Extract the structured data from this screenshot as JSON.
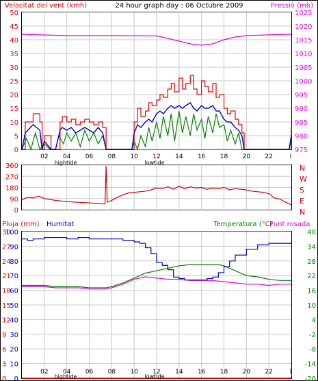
{
  "header": {
    "title": "24 hour graph day : 06 Octubre 2009"
  },
  "panel1": {
    "left_title": "Velocitat del vent (kmh)",
    "right_title": "Pressió (mb)"
  },
  "panel2": {
    "dir_letters": [
      "N",
      "W",
      "S",
      "E",
      "N"
    ]
  },
  "panel3": {
    "left_title": "Pluja (mm)",
    "left_title_2": "Humitat",
    "right_title": "Temperatura (°C)",
    "right_title_2": "Punt rosada"
  },
  "x_axis": {
    "hour_labels": [
      "02",
      "04",
      "06",
      "08",
      "10",
      "12",
      "14",
      "16",
      "18",
      "20",
      "22"
    ],
    "last_label": "l",
    "tide_labels": [
      "hightide",
      "lowtide"
    ]
  },
  "colors": {
    "frame": "#000000",
    "grid": "#c8c8c8",
    "wind_axis": "#e00000",
    "pressure_axis": "#e000e0",
    "gust": "#e00000",
    "avg_wind": "#0000c0",
    "wind_min": "#008000",
    "pressure": "#e000e0",
    "direction": "#d00000",
    "humidity": "#0000c0",
    "temperature": "#008000",
    "dewpoint": "#e000e0",
    "rain": "#e00000"
  },
  "chart_data": [
    {
      "type": "line",
      "title": "24 hour graph day : 06 Octubre 2009",
      "ylabel": "Velocitat del vent (kmh)",
      "y2label": "Pressió (mb)",
      "xlim": [
        0,
        24
      ],
      "ylim": [
        0,
        50
      ],
      "y_ticks": [
        0,
        5,
        10,
        15,
        20,
        25,
        30,
        35,
        40,
        45,
        50
      ],
      "y2lim": [
        975,
        1025
      ],
      "y2_ticks": [
        975,
        980,
        985,
        990,
        995,
        1000,
        1005,
        1010,
        1015,
        1020,
        1025
      ],
      "grid": true,
      "series": [
        {
          "name": "",
          "axis": "left",
          "style": "step",
          "x": [
            0,
            0.3,
            1,
            1.6,
            1.8,
            2,
            2.6,
            3,
            3.4,
            3.6,
            4,
            4.4,
            4.8,
            5.2,
            5.6,
            6,
            6.4,
            6.8,
            7.2,
            7.5,
            9.8,
            10,
            10.3,
            10.6,
            11,
            11.3,
            11.6,
            12,
            12.3,
            12.6,
            13,
            13.3,
            13.6,
            14,
            14.3,
            14.6,
            15,
            15.3,
            15.6,
            16,
            16.3,
            16.6,
            17,
            17.3,
            17.6,
            18,
            18.3,
            18.6,
            19,
            19.3,
            19.6,
            19.8,
            23.8,
            24
          ],
          "values": [
            0,
            10,
            13,
            10,
            0,
            5,
            0,
            0,
            10,
            12,
            10,
            11,
            9,
            10,
            11,
            10,
            9,
            10,
            8,
            0,
            0,
            10,
            15,
            12,
            14,
            17,
            16,
            18,
            20,
            19,
            22,
            24,
            21,
            26,
            22,
            24,
            27,
            22,
            20,
            25,
            23,
            21,
            24,
            19,
            20,
            15,
            13,
            14,
            11,
            9,
            6,
            0,
            0,
            8
          ]
        },
        {
          "name": "",
          "axis": "left",
          "x": [
            0,
            0.3,
            1,
            1.6,
            1.8,
            2,
            2.6,
            3,
            3.4,
            3.6,
            4,
            4.4,
            4.8,
            5.2,
            5.6,
            6,
            6.4,
            6.8,
            7.2,
            7.5,
            9.8,
            10,
            10.3,
            10.6,
            11,
            11.3,
            11.6,
            12,
            12.3,
            12.6,
            13,
            13.3,
            13.6,
            14,
            14.3,
            14.6,
            15,
            15.3,
            15.6,
            16,
            16.3,
            16.6,
            17,
            17.3,
            17.6,
            18,
            18.3,
            18.6,
            19,
            19.3,
            19.6,
            19.8,
            23.8,
            24
          ],
          "values": [
            0,
            6,
            9,
            7,
            0,
            3,
            0,
            0,
            7,
            8,
            7,
            8,
            6,
            7,
            8,
            7,
            6,
            8,
            6,
            0,
            0,
            6,
            9,
            8,
            10,
            11,
            10,
            13,
            14,
            13,
            15,
            16,
            15,
            16,
            15,
            16,
            17,
            15,
            14,
            16,
            15,
            15,
            16,
            14,
            14,
            11,
            10,
            10,
            8,
            7,
            5,
            0,
            0,
            5
          ]
        },
        {
          "name": "",
          "axis": "left",
          "style": "jagged",
          "x": [
            0,
            0.4,
            0.8,
            1.2,
            1.6,
            2,
            2.5,
            3,
            3.3,
            3.7,
            4,
            4.4,
            4.8,
            5.2,
            5.6,
            6,
            6.4,
            6.8,
            7.2,
            7.5,
            9.8,
            10,
            10.3,
            10.6,
            11,
            11.3,
            11.6,
            12,
            12.3,
            12.6,
            13,
            13.3,
            13.6,
            14,
            14.3,
            14.6,
            15,
            15.3,
            15.6,
            16,
            16.3,
            16.6,
            17,
            17.3,
            17.6,
            18,
            18.3,
            18.6,
            19,
            19.3,
            19.6,
            19.8,
            23.8,
            24
          ],
          "values": [
            0,
            4,
            0,
            6,
            0,
            2,
            0,
            0,
            5,
            2,
            6,
            3,
            6,
            1,
            7,
            3,
            6,
            2,
            5,
            0,
            0,
            3,
            0,
            5,
            1,
            8,
            3,
            10,
            4,
            12,
            5,
            13,
            3,
            14,
            6,
            12,
            5,
            13,
            7,
            11,
            4,
            12,
            6,
            13,
            8,
            9,
            3,
            7,
            2,
            6,
            0,
            0,
            0,
            3
          ]
        },
        {
          "name": "",
          "axis": "right",
          "x": [
            0,
            4,
            8,
            12,
            13,
            14,
            15,
            16,
            17,
            18,
            19,
            20,
            22,
            24
          ],
          "values": [
            1017,
            1016.5,
            1016.5,
            1016.4,
            1015.5,
            1014.5,
            1013.5,
            1013,
            1013.5,
            1015,
            1016,
            1016.5,
            1016.8,
            1017
          ]
        }
      ]
    },
    {
      "type": "line",
      "y_ticks": [
        0,
        90,
        180,
        270,
        360
      ],
      "ylim": [
        0,
        360
      ],
      "xlim": [
        0,
        24
      ],
      "grid": true,
      "series": [
        {
          "name": "",
          "x": [
            0,
            0.5,
            1,
            1.5,
            2,
            3,
            4,
            5,
            6,
            7,
            7.4,
            7.5,
            7.6,
            8,
            8.5,
            9,
            9.5,
            10,
            10.5,
            11,
            11.5,
            12,
            12.5,
            13,
            13.5,
            14,
            14.5,
            15,
            15.5,
            16,
            16.5,
            17,
            17.5,
            18,
            18.5,
            19,
            19.5,
            20,
            20.5,
            21,
            21.5,
            22,
            22.5,
            23,
            23.5,
            24
          ],
          "values": [
            80,
            100,
            95,
            110,
            90,
            75,
            65,
            60,
            55,
            50,
            45,
            355,
            60,
            75,
            100,
            120,
            135,
            140,
            145,
            150,
            160,
            175,
            170,
            185,
            165,
            190,
            170,
            185,
            175,
            180,
            165,
            175,
            170,
            180,
            160,
            170,
            165,
            160,
            150,
            145,
            140,
            130,
            95,
            85,
            60,
            40
          ]
        }
      ]
    },
    {
      "type": "line",
      "ylabel": "Pluja (mm)",
      "y2label": "Temperatura (°C)",
      "xlim": [
        0,
        24
      ],
      "ylim": [
        0,
        100
      ],
      "y_ticks_hum": [
        0,
        10,
        20,
        30,
        40,
        50,
        60,
        70,
        80,
        90,
        100
      ],
      "y_ticks_rain": [
        0,
        3,
        6,
        9,
        12,
        15,
        18,
        21,
        24,
        27,
        30
      ],
      "y2lim": [
        -20,
        40
      ],
      "y2_ticks": [
        -20,
        -14,
        -8,
        -2,
        4,
        10,
        16,
        22,
        28,
        34,
        40
      ],
      "grid": true,
      "series": [
        {
          "name": "Humitat",
          "axis": "left",
          "x": [
            0,
            0.5,
            1,
            2,
            3,
            4,
            5,
            6,
            7,
            8,
            9,
            10,
            10.5,
            11,
            11.5,
            12,
            12.5,
            13,
            13.5,
            14,
            14.5,
            15,
            16,
            16.5,
            17,
            17.5,
            18,
            18.5,
            19,
            20,
            21,
            22,
            23,
            24
          ],
          "values": [
            95,
            94,
            95,
            96,
            96,
            95,
            96,
            95,
            95,
            95,
            94,
            93,
            92,
            89,
            85,
            79,
            77,
            74,
            69,
            68,
            67,
            67,
            67,
            68,
            69,
            72,
            76,
            80,
            84,
            88,
            91,
            92,
            92,
            93
          ]
        },
        {
          "name": "Temperatura (°C)",
          "axis": "right",
          "x": [
            0,
            1,
            2,
            3,
            4,
            5,
            6,
            7,
            7.5,
            8,
            9,
            10,
            11,
            12,
            13,
            14,
            15,
            16,
            17,
            17.5,
            18,
            19,
            20,
            21,
            22,
            23,
            24
          ],
          "values": [
            18,
            18,
            18,
            17.5,
            17.5,
            17.5,
            17,
            17,
            17,
            17.5,
            19,
            21,
            23,
            24,
            25,
            26,
            26.5,
            26.5,
            26.5,
            26.5,
            26,
            24,
            22,
            21.5,
            20.5,
            20,
            20
          ]
        },
        {
          "name": "Punt rosada",
          "axis": "right",
          "x": [
            0,
            1,
            2,
            3,
            4,
            5,
            6,
            7,
            7.5,
            8,
            9,
            10,
            11,
            12,
            13,
            14,
            15,
            16,
            17,
            18,
            19,
            20,
            21,
            22,
            23,
            24
          ],
          "values": [
            17.5,
            17.5,
            17.5,
            17,
            17,
            17,
            16.5,
            16.5,
            16.5,
            17,
            18.5,
            20.5,
            21.5,
            21,
            20.5,
            20.5,
            20,
            20,
            20,
            19.5,
            19,
            18.5,
            18.5,
            18,
            18.5,
            18.5
          ]
        },
        {
          "name": "Pluja (mm)",
          "axis": "left",
          "x": [
            0,
            24
          ],
          "values": [
            0,
            0
          ]
        }
      ]
    }
  ]
}
